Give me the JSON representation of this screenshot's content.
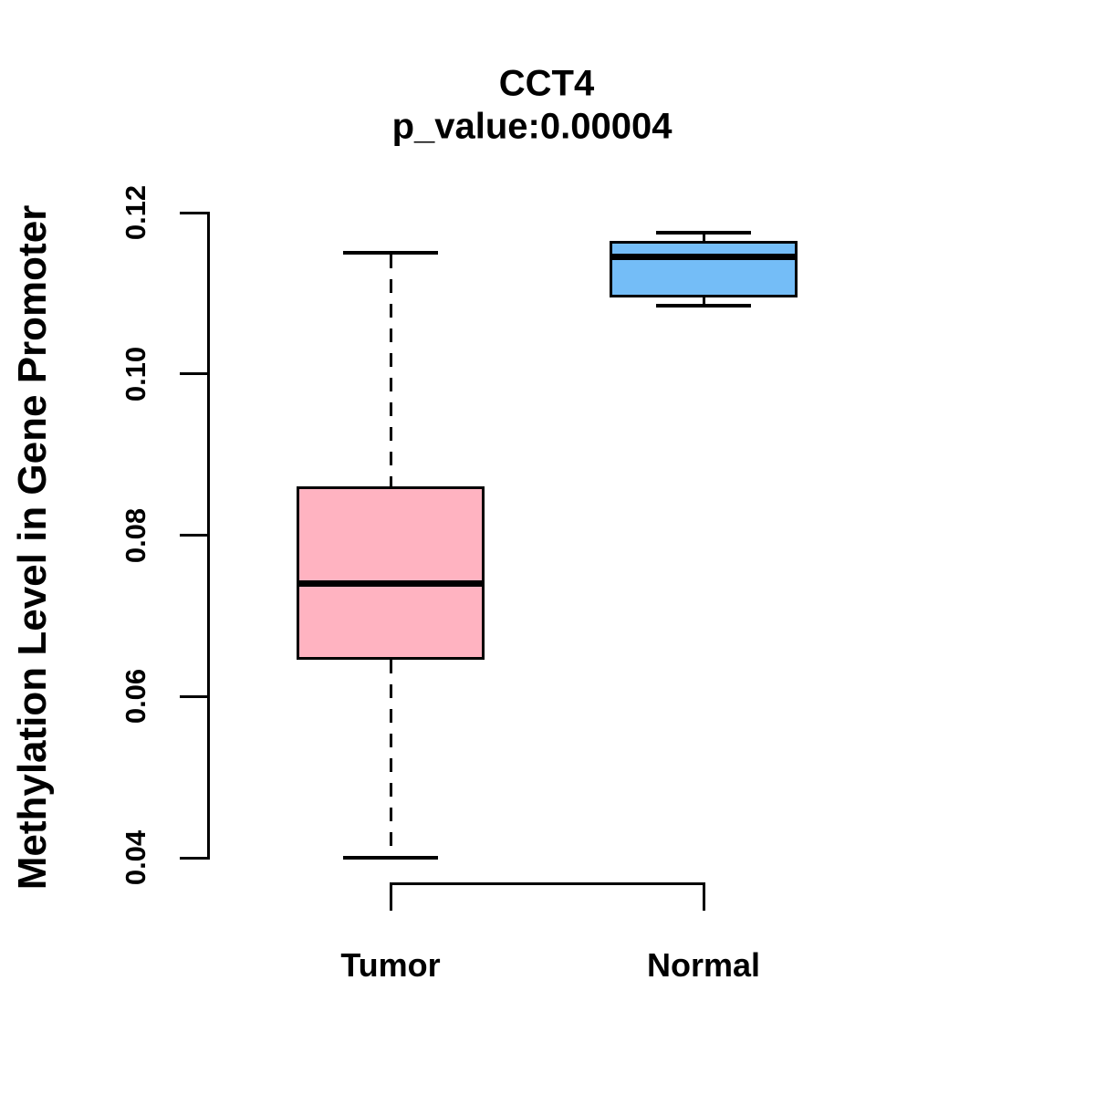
{
  "chart_data": {
    "type": "boxplot",
    "title": "CCT4",
    "subtitle": "p_value:0.00004",
    "ylabel": "Methylation Level in Gene Promoter",
    "xlabel": "",
    "categories": [
      "Tumor",
      "Normal"
    ],
    "ylim": [
      0.04,
      0.12
    ],
    "yticks": [
      0.04,
      0.06,
      0.08,
      0.1,
      0.12
    ],
    "ytick_labels": [
      "0.04",
      "0.06",
      "0.08",
      "0.10",
      "0.12"
    ],
    "grid": false,
    "legend": "none",
    "axis_color": "#000000",
    "background_color": "#FFFFFF",
    "series": [
      {
        "name": "Tumor",
        "fill_color": "#FFB3C1",
        "border_color": "#000000",
        "whisker_low": 0.04,
        "q1": 0.0645,
        "median": 0.074,
        "q3": 0.086,
        "whisker_high": 0.115,
        "whisker_style": "dashed"
      },
      {
        "name": "Normal",
        "fill_color": "#74BDF7",
        "border_color": "#000000",
        "whisker_low": 0.1085,
        "q1": 0.1095,
        "median": 0.1145,
        "q3": 0.1165,
        "whisker_high": 0.1175,
        "whisker_style": "solid"
      }
    ]
  }
}
